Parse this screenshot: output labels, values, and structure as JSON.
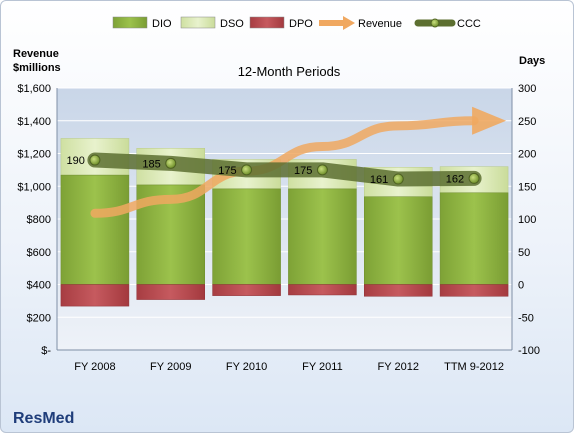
{
  "chart_data": {
    "type": "bar",
    "title": "12-Month Periods",
    "company": "ResMed",
    "left_axis_label_line1": "Revenue",
    "left_axis_label_line2": "$millions",
    "right_axis_label": "Days",
    "categories": [
      "FY 2008",
      "FY 2009",
      "FY 2010",
      "FY 2011",
      "FY 2012",
      "TTM 9-2012"
    ],
    "left_ticks": [
      "$-",
      "$200",
      "$400",
      "$600",
      "$800",
      "$1,000",
      "$1,200",
      "$1,400",
      "$1,600"
    ],
    "left_ylim": [
      0,
      1600
    ],
    "right_ticks": [
      "-100",
      "-50",
      "0",
      "50",
      "100",
      "150",
      "200",
      "250",
      "300"
    ],
    "right_ylim": [
      -100,
      300
    ],
    "legend_position": "top",
    "legend": [
      {
        "name": "DIO",
        "kind": "bar",
        "color": "#8fb53f"
      },
      {
        "name": "DSO",
        "kind": "bar",
        "color": "#d8e8b0"
      },
      {
        "name": "DPO",
        "kind": "bar",
        "color": "#b94a4f"
      },
      {
        "name": "Revenue",
        "kind": "arrow",
        "color": "#f0a860"
      },
      {
        "name": "CCC",
        "kind": "line",
        "color": "#6a7f3a"
      }
    ],
    "series": [
      {
        "name": "DIO",
        "axis": "right",
        "values": [
          167,
          152,
          146,
          146,
          134,
          140
        ]
      },
      {
        "name": "DSO",
        "axis": "right",
        "values": [
          56,
          56,
          45,
          45,
          45,
          40
        ]
      },
      {
        "name": "DPO",
        "axis": "right",
        "values": [
          -33,
          -23,
          -17,
          -16,
          -18,
          -18
        ]
      },
      {
        "name": "CCC",
        "axis": "right",
        "values": [
          190,
          185,
          175,
          175,
          161,
          162
        ],
        "labels": [
          "190",
          "185",
          "175",
          "175",
          "161",
          "162"
        ]
      },
      {
        "name": "Revenue",
        "axis": "left",
        "values": [
          835,
          920,
          1092,
          1243,
          1369,
          1400
        ]
      }
    ]
  }
}
